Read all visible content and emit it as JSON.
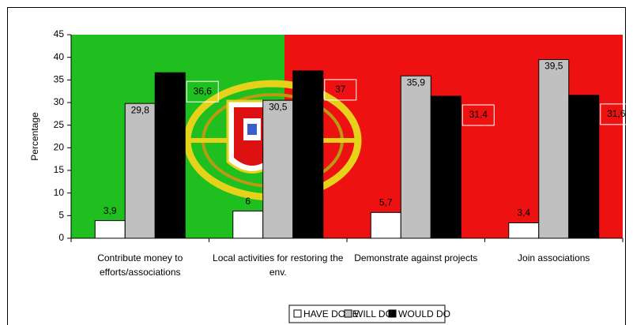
{
  "chart_data": {
    "type": "bar",
    "y_label": "Percentage",
    "categories": [
      "Contribute money to efforts/associations",
      "Local activities for restoring the env.",
      "Demonstrate against projects",
      "Join associations"
    ],
    "series": [
      {
        "name": "HAVE DONE",
        "color": "#ffffff",
        "values": [
          3.9,
          6,
          5.7,
          3.4
        ],
        "value_labels": [
          "3,9",
          "6",
          "5,7",
          "3,4"
        ]
      },
      {
        "name": "WILL DO",
        "color": "#c0c0c0",
        "values": [
          29.8,
          30.5,
          35.9,
          39.5
        ],
        "value_labels": [
          "29,8",
          "30,5",
          "35,9",
          "39,5"
        ]
      },
      {
        "name": "WOULD DO",
        "color": "#000000",
        "values": [
          36.6,
          37,
          31.4,
          31.6
        ],
        "value_labels": [
          "36,6",
          "37",
          "31,4",
          "31,6"
        ]
      }
    ],
    "ylim": [
      0,
      45
    ],
    "yticks": [
      0,
      5,
      10,
      15,
      20,
      25,
      30,
      35,
      40,
      45
    ],
    "legend": "bottom"
  }
}
